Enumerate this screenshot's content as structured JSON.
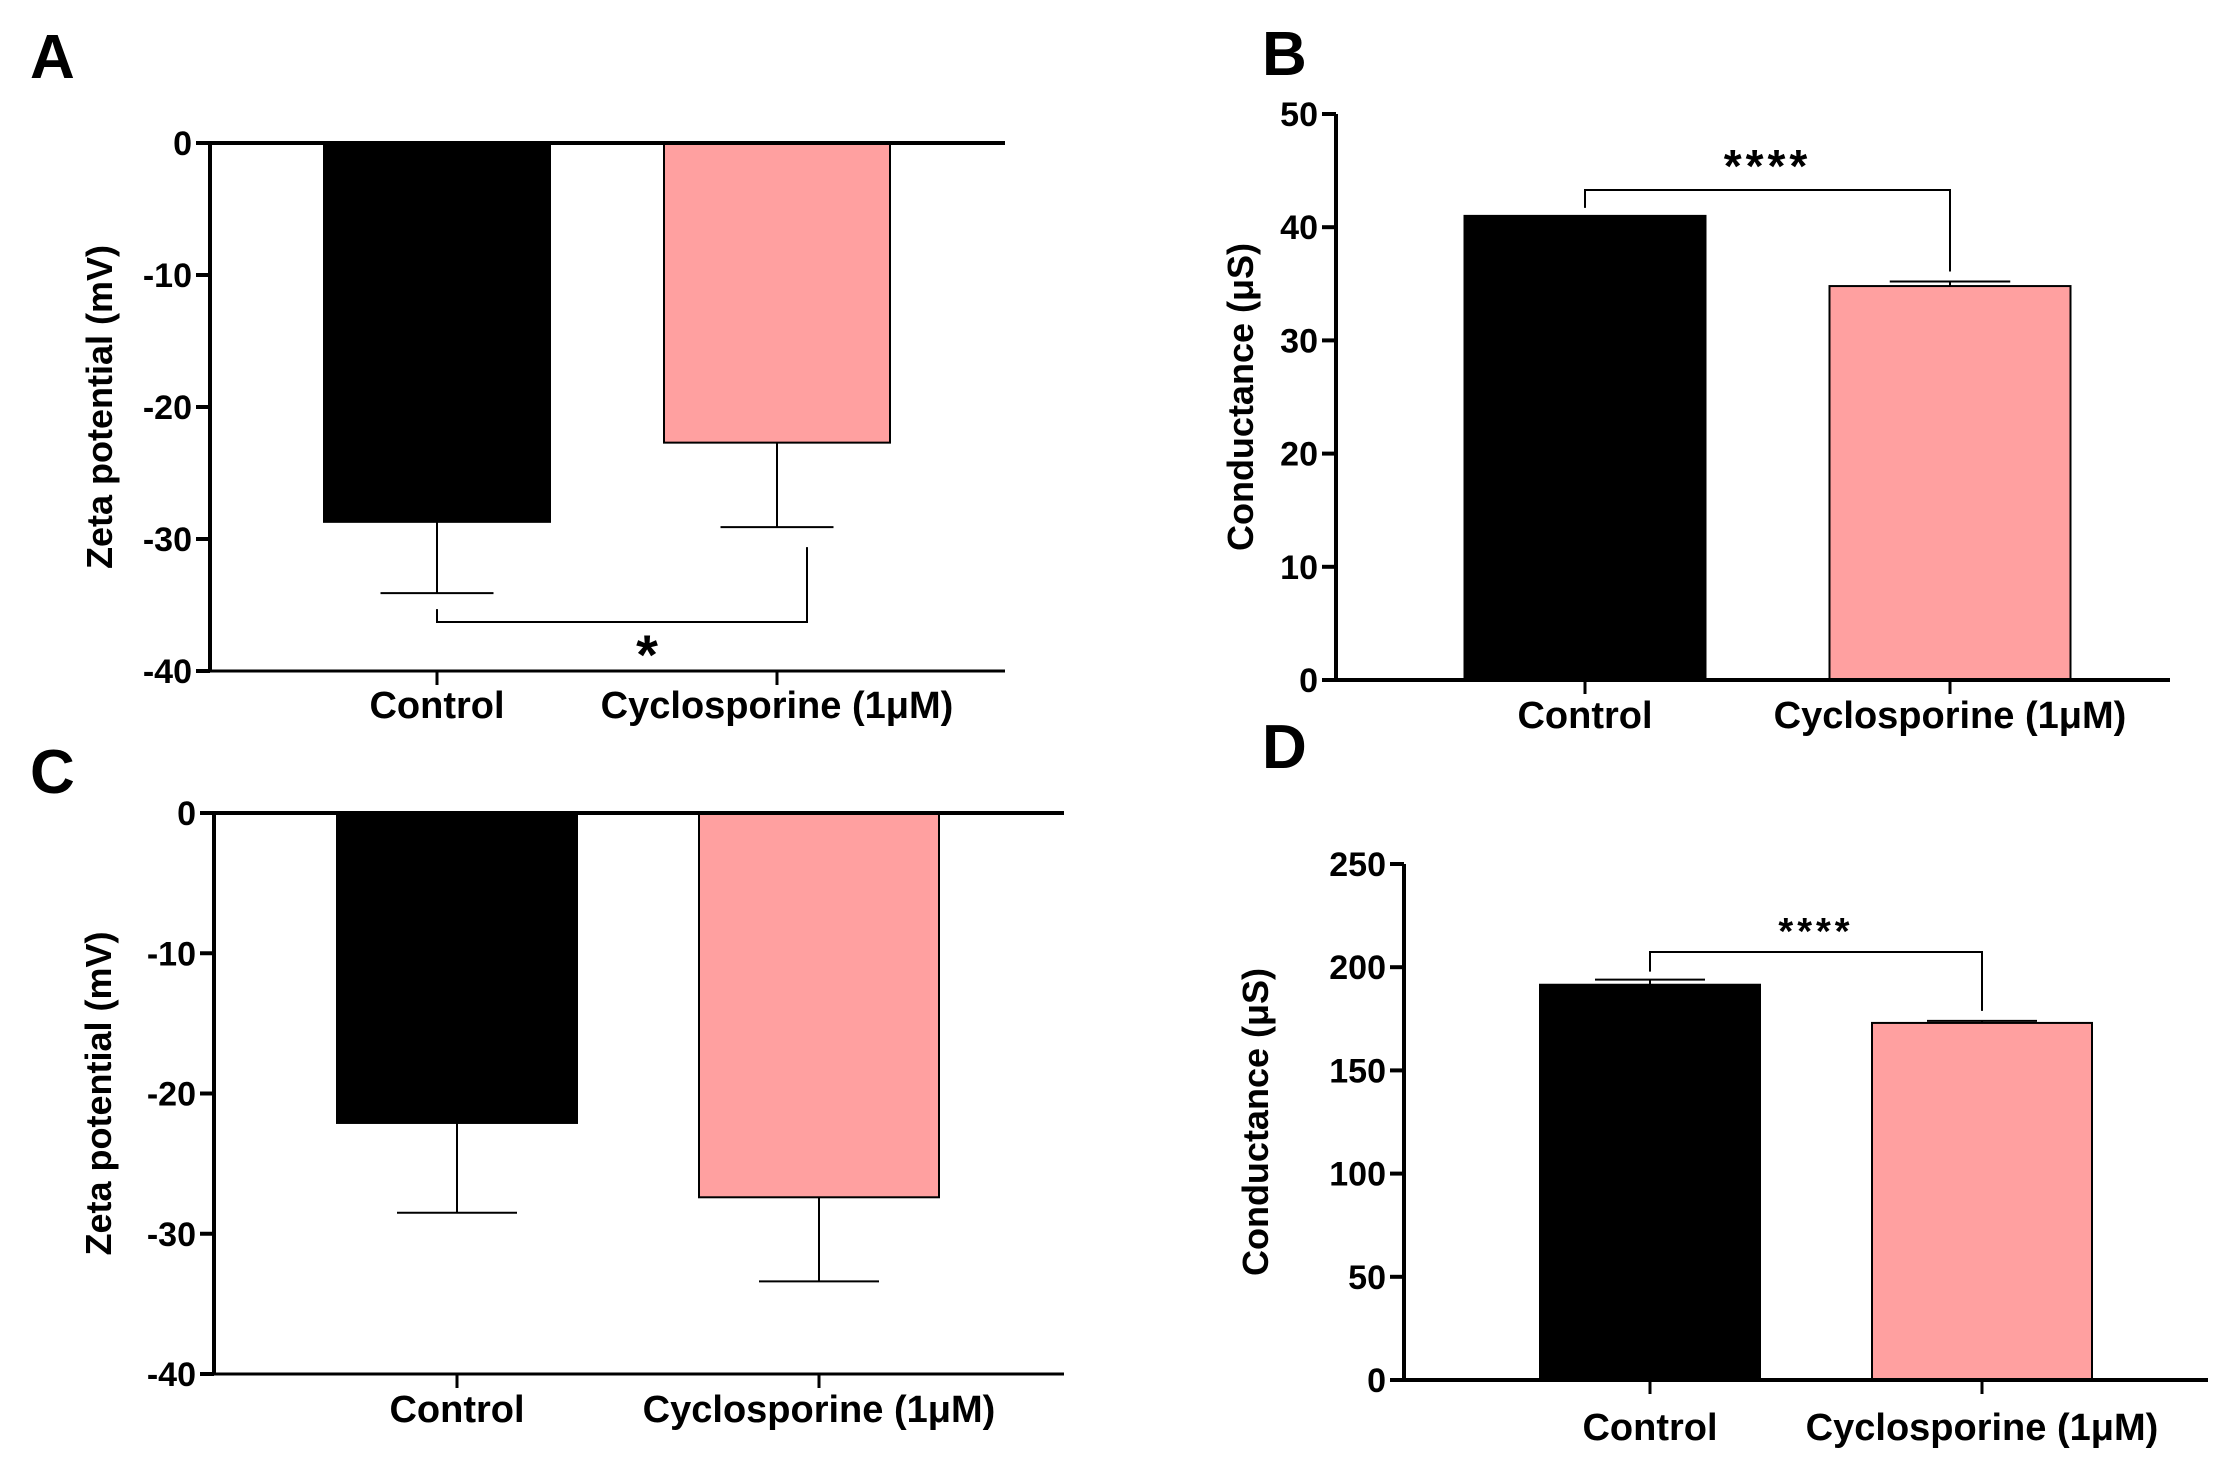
{
  "colors": {
    "control": "#000000",
    "cyclosporine": "#ffa0a0",
    "axis": "#000000"
  },
  "chart_data": [
    {
      "panel": "A",
      "type": "bar",
      "ylabel": "Zeta potential (mV)",
      "xlabel": "",
      "ylim": [
        -40,
        0
      ],
      "yticks": [
        "0",
        "-10",
        "-20",
        "-30",
        "-40"
      ],
      "categories": [
        "Control",
        "Cyclosporine (1μM)"
      ],
      "values": [
        -28.7,
        -22.7
      ],
      "errors": [
        5.4,
        6.4
      ],
      "significance": "*",
      "grid": false
    },
    {
      "panel": "B",
      "type": "bar",
      "ylabel": "Conductance (μS)",
      "xlabel": "",
      "ylim": [
        0,
        50
      ],
      "yticks": [
        "0",
        "10",
        "20",
        "30",
        "40",
        "50"
      ],
      "categories": [
        "Control",
        "Cyclosporine (1μM)"
      ],
      "values": [
        41.0,
        34.8
      ],
      "errors": [
        0.0,
        0.4
      ],
      "significance": "****",
      "grid": false
    },
    {
      "panel": "C",
      "type": "bar",
      "ylabel": "Zeta potential (mV)",
      "xlabel": "",
      "ylim": [
        -40,
        0
      ],
      "yticks": [
        "0",
        "-10",
        "-20",
        "-30",
        "-40"
      ],
      "categories": [
        "Control",
        "Cyclosporine (1μM)"
      ],
      "values": [
        -22.1,
        -27.4
      ],
      "errors": [
        6.4,
        6.0
      ],
      "significance": "",
      "grid": false
    },
    {
      "panel": "D",
      "type": "bar",
      "ylabel": "Conductance (μS)",
      "xlabel": "",
      "ylim": [
        0,
        250
      ],
      "yticks": [
        "0",
        "50",
        "100",
        "150",
        "200",
        "250"
      ],
      "categories": [
        "Control",
        "Cyclosporine (1μM)"
      ],
      "values": [
        191.5,
        173.0
      ],
      "errors": [
        2.5,
        1.0
      ],
      "significance": "****",
      "grid": false
    }
  ]
}
